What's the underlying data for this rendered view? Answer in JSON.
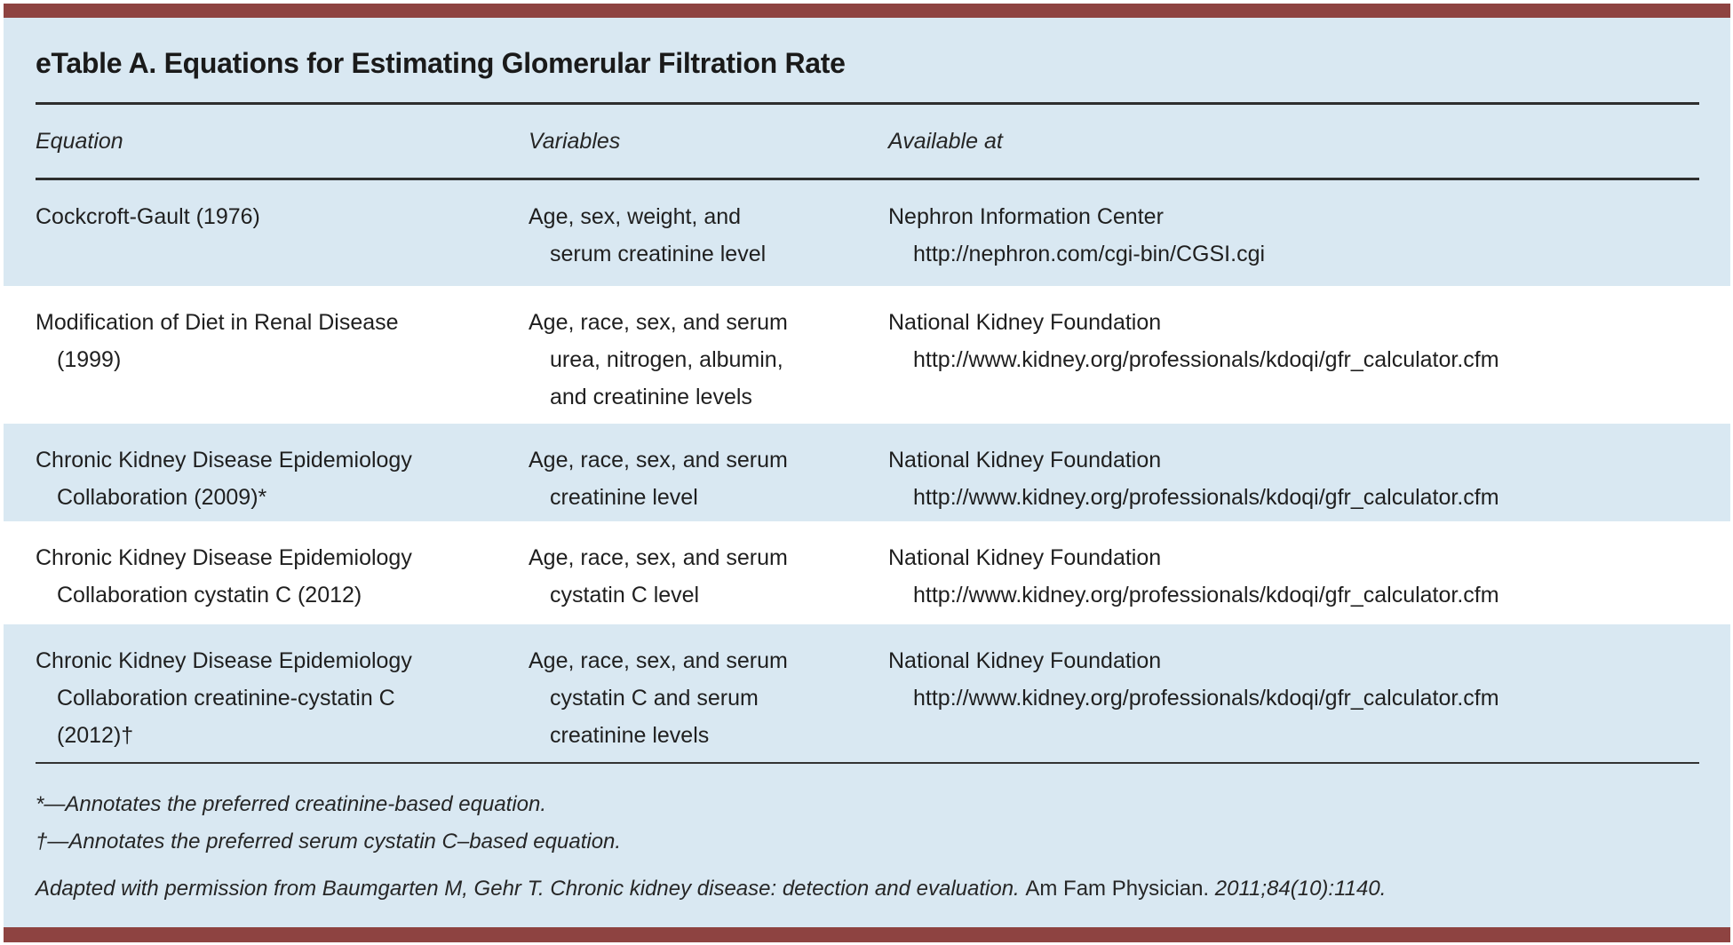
{
  "page": {
    "title": "eTable A. Equations for Estimating Glomerular Filtration Rate"
  },
  "table": {
    "headers": {
      "equation": "Equation",
      "variables": "Variables",
      "available_at": "Available at"
    },
    "rows": [
      {
        "equation": [
          "Cockcroft-Gault (1976)"
        ],
        "variables": [
          "Age, sex, weight, and",
          "serum creatinine level"
        ],
        "available_at": [
          "Nephron Information Center",
          "http://nephron.com/cgi-bin/CGSI.cgi"
        ]
      },
      {
        "equation": [
          "Modification of Diet in Renal Disease",
          "(1999)"
        ],
        "variables": [
          "Age, race, sex, and serum",
          "urea, nitrogen, albumin,",
          "and creatinine levels"
        ],
        "available_at": [
          "National Kidney Foundation",
          "http://www.kidney.org/professionals/kdoqi/gfr_calculator.cfm"
        ]
      },
      {
        "equation": [
          "Chronic Kidney Disease Epidemiology",
          "Collaboration (2009)*"
        ],
        "variables": [
          "Age, race, sex, and serum",
          "creatinine level"
        ],
        "available_at": [
          "National Kidney Foundation",
          "http://www.kidney.org/professionals/kdoqi/gfr_calculator.cfm"
        ]
      },
      {
        "equation": [
          "Chronic Kidney Disease Epidemiology",
          "Collaboration cystatin C (2012)"
        ],
        "variables": [
          "Age, race, sex, and serum",
          "cystatin C level"
        ],
        "available_at": [
          "National Kidney Foundation",
          "http://www.kidney.org/professionals/kdoqi/gfr_calculator.cfm"
        ]
      },
      {
        "equation": [
          "Chronic Kidney Disease Epidemiology",
          "Collaboration creatinine-cystatin C",
          "(2012)†"
        ],
        "variables": [
          "Age, race, sex, and serum",
          "cystatin C and serum",
          "creatinine levels"
        ],
        "available_at": [
          "National Kidney Foundation",
          "http://www.kidney.org/professionals/kdoqi/gfr_calculator.cfm"
        ]
      }
    ]
  },
  "footnotes": {
    "asterisk": "*—Annotates the preferred creatinine-based equation.",
    "dagger": "†—Annotates the preferred serum cystatin C–based equation."
  },
  "citation": {
    "prefix": "Adapted with permission from Baumgarten M, Gehr T. Chronic kidney disease: detection and evaluation.",
    "journal": "Am Fam Physician.",
    "suffix": "2011;84(10):1140."
  },
  "colors": {
    "accent_bar": "#8e4341",
    "panel_background": "#d9e8f2",
    "row_alt_background": "#ffffff",
    "rule": "#2e2e2e",
    "text": "#1f1f1f"
  }
}
